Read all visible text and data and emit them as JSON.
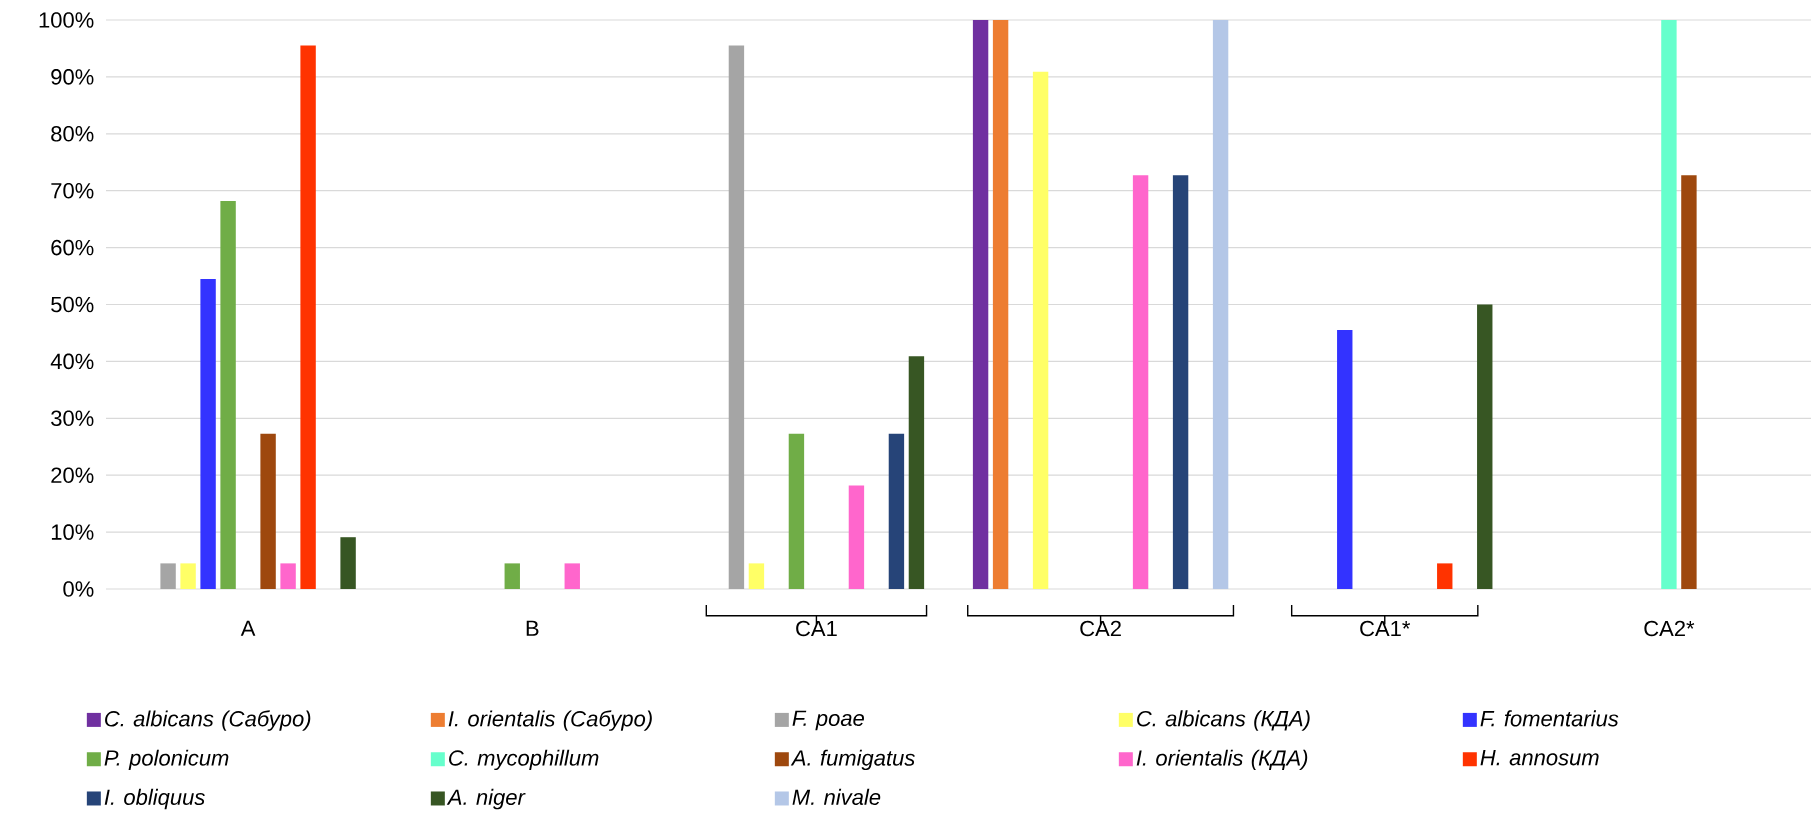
{
  "chart_data": {
    "type": "bar",
    "categories": [
      "A",
      "B",
      "CA1",
      "CA2",
      "CA1*",
      "CA2*"
    ],
    "series": [
      {
        "name": "C. albicans (Сабуро)",
        "color": "#7030a0",
        "values": [
          null,
          null,
          null,
          100,
          null,
          null
        ]
      },
      {
        "name": "I. orientalis (Сабуро)",
        "color": "#ed7d31",
        "values": [
          null,
          null,
          null,
          100,
          null,
          null
        ]
      },
      {
        "name": "F. poae",
        "color": "#a5a5a5",
        "values": [
          4.5,
          null,
          95.5,
          null,
          null,
          null
        ]
      },
      {
        "name": "C. albicans (КДА)",
        "color": "#ffff66",
        "values": [
          4.5,
          null,
          4.5,
          90.9,
          null,
          null
        ]
      },
      {
        "name": "F. fomentarius",
        "color": "#3333ff",
        "values": [
          54.5,
          null,
          null,
          null,
          45.5,
          null
        ]
      },
      {
        "name": "P. polonicum",
        "color": "#70ad47",
        "values": [
          68.2,
          4.5,
          27.3,
          null,
          null,
          null
        ]
      },
      {
        "name": "C. mycophillum",
        "color": "#66ffcc",
        "values": [
          null,
          null,
          null,
          null,
          null,
          100
        ]
      },
      {
        "name": "A. fumigatus",
        "color": "#9e480e",
        "values": [
          27.3,
          null,
          null,
          null,
          null,
          72.7
        ]
      },
      {
        "name": "I. orientalis (КДА)",
        "color": "#ff66cc",
        "values": [
          4.5,
          4.5,
          18.2,
          72.7,
          null,
          null
        ]
      },
      {
        "name": "H. annosum",
        "color": "#ff3300",
        "values": [
          95.5,
          null,
          null,
          null,
          4.5,
          null
        ]
      },
      {
        "name": "I. obliquus",
        "color": "#264478",
        "values": [
          null,
          null,
          27.3,
          72.7,
          null,
          null
        ]
      },
      {
        "name": "A. niger",
        "color": "#375623",
        "values": [
          9.1,
          null,
          40.9,
          null,
          50,
          null
        ]
      },
      {
        "name": "M. nivale",
        "color": "#b4c7e7",
        "values": [
          null,
          null,
          null,
          100,
          null,
          null
        ]
      }
    ],
    "ylim": [
      0,
      100
    ],
    "yticks": [
      {
        "value": 0,
        "label": "0%"
      },
      {
        "value": 10,
        "label": "10%"
      },
      {
        "value": 20,
        "label": "20%"
      },
      {
        "value": 30,
        "label": "30%"
      },
      {
        "value": 40,
        "label": "40%"
      },
      {
        "value": 50,
        "label": "50%"
      },
      {
        "value": 60,
        "label": "60%"
      },
      {
        "value": 70,
        "label": "70%"
      },
      {
        "value": 80,
        "label": "80%"
      },
      {
        "value": 90,
        "label": "90%"
      },
      {
        "value": 100,
        "label": "100%"
      }
    ],
    "grid": "y",
    "legend": "bottom"
  }
}
